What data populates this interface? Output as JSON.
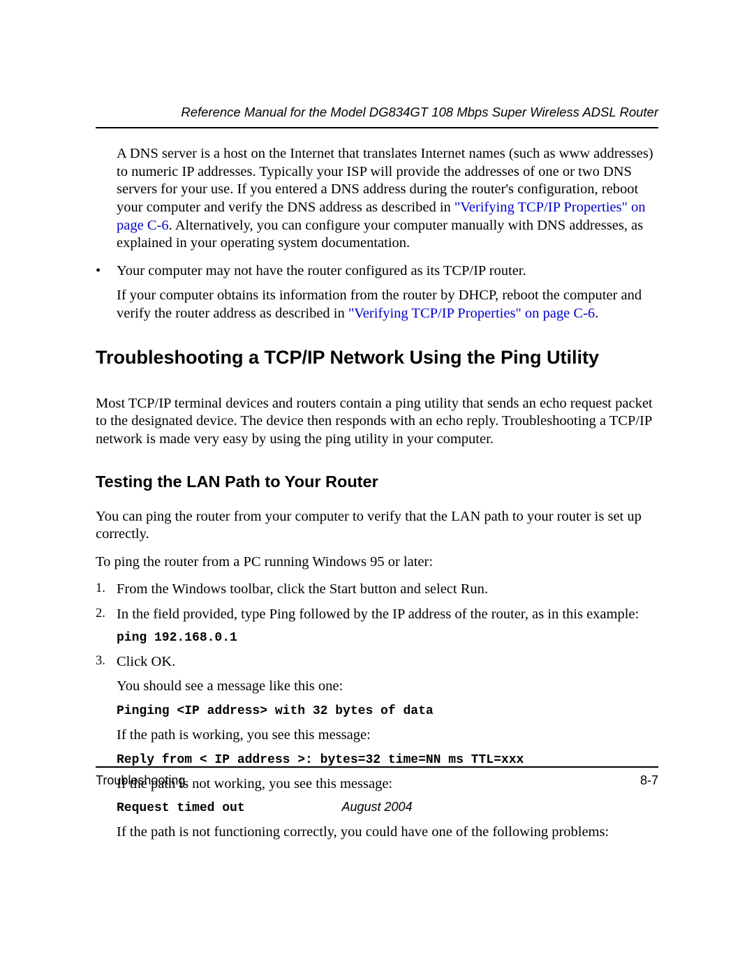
{
  "header": {
    "running_title": "Reference Manual for the Model DG834GT 108 Mbps Super Wireless ADSL Router"
  },
  "intro": {
    "dns_para_before_link": "A DNS server is a host on the Internet that translates Internet names (such as www addresses) to numeric IP addresses. Typically your ISP will provide the addresses of one or two DNS servers for your use. If you entered a DNS address during the router's configuration, reboot your computer and verify the DNS address as described in ",
    "dns_link_text": "\"Verifying TCP/IP Properties\" on page C-6",
    "dns_para_after_link": ". Alternatively, you can configure your computer manually with DNS addresses, as explained in your operating system documentation."
  },
  "bullet": {
    "marker": "•",
    "text": "Your computer may not have the router configured as its TCP/IP router.",
    "sub_before_link": "If your computer obtains its information from the router by DHCP, reboot the computer and verify the router address as described in ",
    "sub_link_text": "\"Verifying TCP/IP Properties\" on page C-6",
    "sub_after_link": "."
  },
  "h1": "Troubleshooting a TCP/IP Network Using the Ping Utility",
  "h1_para": "Most TCP/IP terminal devices and routers contain a ping utility that sends an echo request packet to the designated device. The device then responds with an echo reply. Troubleshooting a TCP/IP network is made very easy by using the ping utility in your computer.",
  "h2": "Testing the LAN Path to Your Router",
  "h2_para1": "You can ping the router from your computer to verify that the LAN path to your router is set up correctly.",
  "h2_para2": "To ping the router from a PC running Windows 95 or later:",
  "steps": {
    "s1": {
      "num": "1.",
      "text": "From the Windows toolbar, click the Start button and select Run."
    },
    "s2": {
      "num": "2.",
      "text": "In the field provided, type Ping followed by the IP address of the router, as in this example:",
      "code": "ping 192.168.0.1"
    },
    "s3": {
      "num": "3.",
      "text": "Click OK.",
      "p1": "You should see a message like this one:",
      "code1": "Pinging <IP address> with 32 bytes of data",
      "p2": "If the path is working, you see this message:",
      "code2": "Reply from < IP address >: bytes=32 time=NN ms TTL=xxx",
      "p3": "If the path is not working, you see this message:",
      "code3": "Request timed out",
      "p4": "If the path is not functioning correctly, you could have one of the following problems:"
    }
  },
  "footer": {
    "section": "Troubleshooting",
    "page": "8-7",
    "date": "August 2004"
  },
  "links": {
    "color": "#0000cc"
  }
}
